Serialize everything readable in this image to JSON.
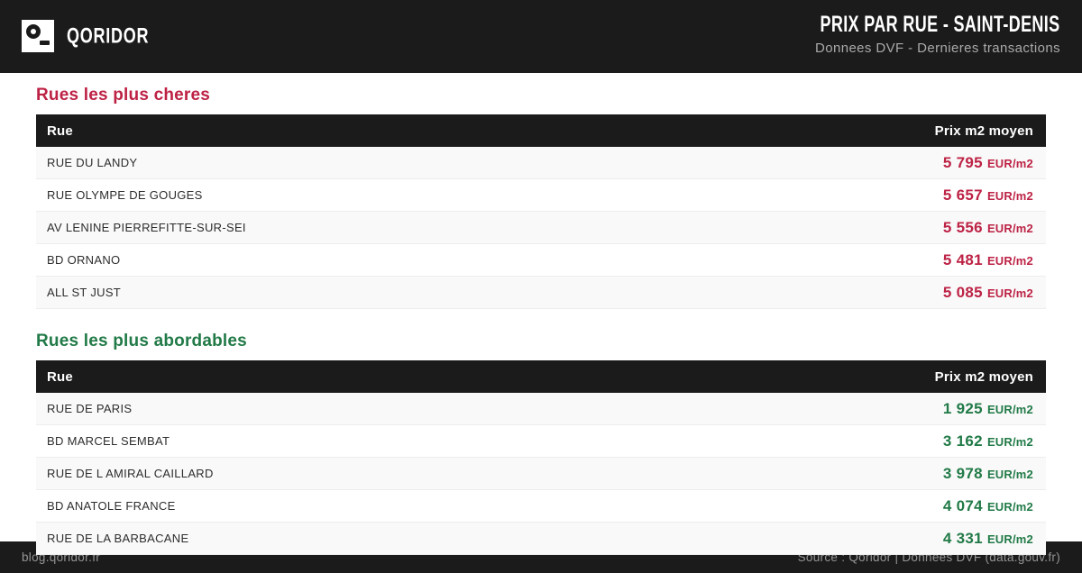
{
  "brand": {
    "name": "QORIDOR"
  },
  "header": {
    "title": "PRIX PAR RUE - SAINT-DENIS",
    "subtitle": "Donnees DVF - Dernieres transactions"
  },
  "colors": {
    "dark": "#1b1b1b",
    "accent_expensive": "#bd2245",
    "accent_affordable": "#217a47",
    "row_stripe": "#f9f9f9"
  },
  "sections": [
    {
      "title": "Rues les plus cheres",
      "columns": {
        "street": "Rue",
        "price": "Prix m2 moyen"
      },
      "rows": [
        {
          "street": "RUE DU LANDY",
          "value": "5 795",
          "unit": "EUR/m2"
        },
        {
          "street": "RUE OLYMPE DE GOUGES",
          "value": "5 657",
          "unit": "EUR/m2"
        },
        {
          "street": "AV LENINE PIERREFITTE-SUR-SEI",
          "value": "5 556",
          "unit": "EUR/m2"
        },
        {
          "street": "BD ORNANO",
          "value": "5 481",
          "unit": "EUR/m2"
        },
        {
          "street": "ALL ST JUST",
          "value": "5 085",
          "unit": "EUR/m2"
        }
      ]
    },
    {
      "title": "Rues les plus abordables",
      "columns": {
        "street": "Rue",
        "price": "Prix m2 moyen"
      },
      "rows": [
        {
          "street": "RUE DE PARIS",
          "value": "1 925",
          "unit": "EUR/m2"
        },
        {
          "street": "BD MARCEL SEMBAT",
          "value": "3 162",
          "unit": "EUR/m2"
        },
        {
          "street": "RUE DE L AMIRAL CAILLARD",
          "value": "3 978",
          "unit": "EUR/m2"
        },
        {
          "street": "BD ANATOLE FRANCE",
          "value": "4 074",
          "unit": "EUR/m2"
        },
        {
          "street": "RUE DE LA BARBACANE",
          "value": "4 331",
          "unit": "EUR/m2"
        }
      ]
    }
  ],
  "footer": {
    "left": "blog.qoridor.fr",
    "right": "Source : Qoridor | Donnees DVF (data.gouv.fr)"
  }
}
